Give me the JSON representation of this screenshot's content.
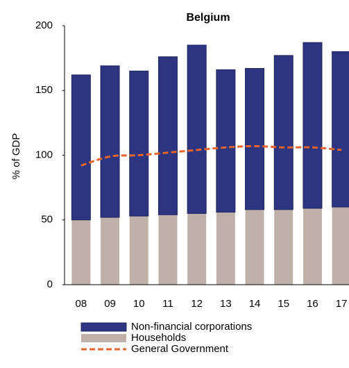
{
  "chart_data": {
    "type": "bar",
    "stacked": true,
    "title": "Belgium",
    "y_label": "% of GDP",
    "categories": [
      "08",
      "09",
      "10",
      "11",
      "12",
      "13",
      "14",
      "15",
      "16",
      "17"
    ],
    "series": [
      {
        "name": "Households",
        "type": "bar",
        "color": "#bfb1aa",
        "values": [
          50,
          52,
          53,
          54,
          55,
          56,
          58,
          58,
          59,
          60
        ]
      },
      {
        "name": "Non-financial corporations",
        "type": "bar",
        "color": "#2e3580",
        "values": [
          112,
          117,
          112,
          122,
          130,
          110,
          109,
          119,
          128,
          120
        ]
      },
      {
        "name": "General Government",
        "type": "line",
        "color": "#e8642a",
        "values": [
          92,
          99,
          100,
          102,
          104,
          106,
          107,
          106,
          106,
          104
        ]
      }
    ],
    "legend_order": [
      1,
      0,
      2
    ],
    "ylim": [
      0,
      200
    ],
    "yticks": [
      0,
      50,
      100,
      150,
      200
    ],
    "grid": false
  }
}
